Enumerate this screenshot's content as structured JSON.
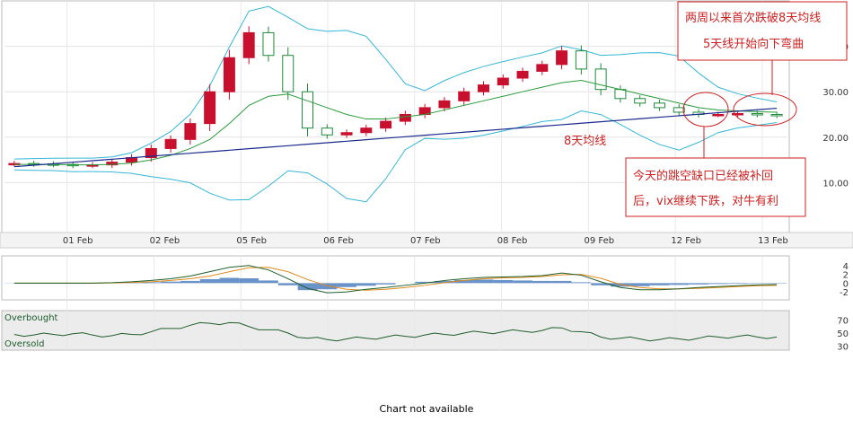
{
  "chart_data": {
    "type": "line",
    "x_labels": [
      "01 Feb",
      "02 Feb",
      "05 Feb",
      "06 Feb",
      "07 Feb",
      "08 Feb",
      "09 Feb",
      "12 Feb",
      "13 Feb"
    ],
    "price_axis": {
      "ticks": [
        "40.00",
        "30.00",
        "20.00",
        "10.00"
      ],
      "values": [
        40,
        30,
        20,
        10
      ],
      "ylim": [
        0,
        50
      ]
    },
    "macd_axis": {
      "ticks": [
        "4",
        "2",
        "0",
        "-2"
      ],
      "values": [
        4,
        2,
        0,
        -2
      ],
      "ylim": [
        -3.4,
        5.8
      ]
    },
    "rsi_axis": {
      "ticks": [
        "70",
        "50",
        "30"
      ],
      "values": [
        70,
        50,
        30
      ],
      "ylim": [
        10,
        90
      ]
    },
    "series": [
      {
        "name": "VIX",
        "values": [
          14.2,
          14.1,
          14.0,
          13.8,
          13.9,
          14.5,
          15.5,
          17.5,
          19.5,
          23.0,
          30.0,
          37.5,
          43.0,
          38.0,
          30.0,
          22.0,
          20.5,
          21.0,
          22.0,
          23.5,
          25.0,
          26.5,
          28.0,
          30.0,
          31.5,
          33.0,
          34.5,
          36.0,
          39.0,
          35.0,
          30.5,
          28.5,
          27.5,
          26.5,
          25.5,
          25.0,
          25.0,
          25.2,
          25.0,
          24.8
        ]
      },
      {
        "name": "8天均线",
        "values": [
          14.0,
          14.0,
          14.0,
          13.9,
          13.9,
          14.0,
          14.3,
          15.0,
          16.0,
          17.5,
          19.5,
          23.0,
          27.0,
          29.0,
          29.5,
          28.0,
          26.5,
          25.0,
          24.0,
          24.0,
          24.5,
          25.0,
          26.0,
          27.0,
          28.0,
          29.0,
          30.0,
          31.0,
          32.0,
          32.5,
          31.5,
          30.5,
          29.5,
          28.5,
          27.5,
          26.5,
          26.0,
          25.8,
          25.6,
          25.5
        ]
      }
    ],
    "macd": {
      "histogram": [
        0.05,
        0.03,
        0.0,
        -0.02,
        0.0,
        0.05,
        0.1,
        0.2,
        0.35,
        0.5,
        0.9,
        1.2,
        1.1,
        0.6,
        -0.5,
        -1.6,
        -1.4,
        -0.9,
        -0.6,
        -0.3,
        0.0,
        0.3,
        0.5,
        0.7,
        0.8,
        0.7,
        0.6,
        0.5,
        0.5,
        0.2,
        -0.5,
        -0.8,
        -0.7,
        -0.5,
        -0.4,
        -0.3,
        -0.2,
        -0.15,
        -0.1,
        -0.1
      ],
      "macd_line": [
        0.0,
        0.0,
        0.0,
        0.0,
        0.0,
        0.1,
        0.3,
        0.6,
        1.0,
        1.6,
        2.6,
        3.6,
        4.0,
        3.0,
        1.0,
        -1.2,
        -2.2,
        -2.0,
        -1.4,
        -1.0,
        -0.5,
        0.0,
        0.6,
        1.0,
        1.3,
        1.4,
        1.5,
        1.7,
        2.3,
        1.8,
        0.3,
        -1.0,
        -1.5,
        -1.5,
        -1.3,
        -1.0,
        -0.8,
        -0.6,
        -0.4,
        -0.3
      ],
      "signal_line": [
        0.0,
        0.0,
        0.0,
        0.0,
        0.0,
        0.05,
        0.15,
        0.3,
        0.6,
        1.0,
        1.6,
        2.6,
        3.5,
        3.6,
        2.6,
        0.8,
        -0.6,
        -1.4,
        -1.6,
        -1.4,
        -1.0,
        -0.5,
        0.1,
        0.6,
        1.0,
        1.2,
        1.3,
        1.5,
        1.9,
        2.0,
        1.1,
        -0.3,
        -1.0,
        -1.3,
        -1.3,
        -1.2,
        -1.0,
        -0.8,
        -0.6,
        -0.5
      ]
    },
    "rsi": [
      48,
      47,
      48,
      49,
      47,
      46,
      48,
      52,
      57,
      62,
      65,
      66,
      60,
      55,
      50,
      42,
      40,
      41,
      42,
      44,
      45,
      47,
      48,
      50,
      51,
      52,
      53,
      54,
      58,
      52,
      44,
      42,
      41,
      40,
      41,
      42,
      44,
      45,
      44,
      44
    ],
    "rsi_zones": {
      "upper": "Overbought",
      "lower": "Oversold"
    },
    "grid": true
  },
  "annotations": {
    "note1_line1": "两周以来首次跌破8天均线",
    "note1_line2": "5天线开始向下弯曲",
    "ma_label": "8天均线",
    "note2_line1": "今天的跳空缺口已经被补回",
    "note2_line2": "后，vix继续下跌，对牛有利"
  },
  "footer": {
    "status": "Chart not available"
  },
  "colors": {
    "up": "#1f8a3a",
    "down": "#c8102e",
    "annotation": "#cc2222",
    "macd_hist": "#4f7fbf",
    "signal": "#e08a1a",
    "macd": "#1f5e2a",
    "bollinger": "#35b6d8",
    "ma_long": "#1a2a8c"
  }
}
